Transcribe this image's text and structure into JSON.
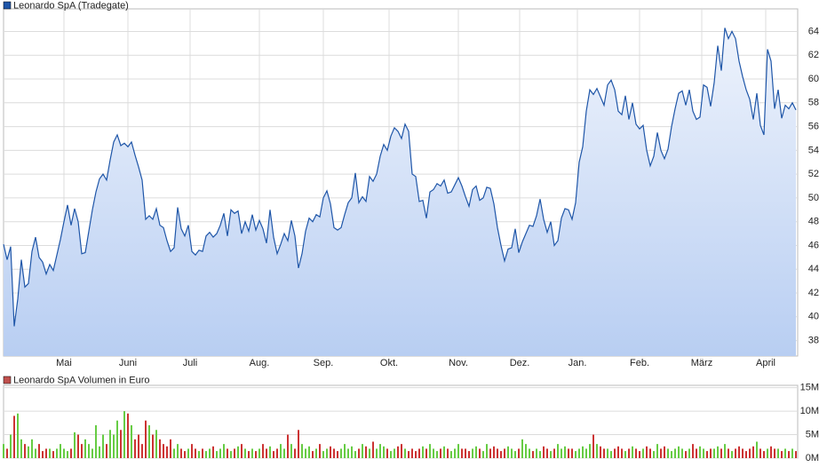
{
  "chart_data": [
    {
      "type": "line",
      "series": [
        {
          "name": "Leonardo SpA (Tradegate)",
          "color": "#1f56a8",
          "values": [
            46.1,
            44.8,
            45.9,
            39.2,
            41.5,
            44.8,
            42.5,
            42.8,
            45.5,
            46.7,
            45.0,
            44.6,
            43.6,
            44.4,
            43.9,
            45.2,
            46.5,
            48.0,
            49.4,
            47.7,
            49.1,
            48.0,
            45.3,
            45.4,
            47.2,
            49.0,
            50.5,
            51.6,
            52.0,
            51.5,
            53.2,
            54.7,
            55.3,
            54.4,
            54.6,
            54.3,
            54.7,
            53.6,
            52.6,
            51.5,
            48.2,
            48.5,
            48.2,
            49.1,
            47.7,
            47.5,
            46.4,
            45.5,
            45.8,
            49.2,
            47.4,
            46.8,
            47.7,
            45.5,
            45.2,
            45.6,
            45.5,
            46.8,
            47.1,
            46.7,
            47.0,
            47.7,
            48.7,
            46.8,
            49.0,
            48.7,
            48.9,
            47.0,
            48.0,
            47.2,
            48.6,
            47.3,
            48.1,
            47.4,
            46.2,
            49.0,
            46.7,
            45.3,
            46.1,
            47.0,
            46.4,
            48.1,
            46.8,
            44.1,
            45.3,
            47.2,
            48.3,
            48.0,
            48.6,
            48.4,
            50.0,
            50.6,
            49.5,
            47.5,
            47.3,
            47.5,
            48.6,
            49.6,
            50.0,
            52.1,
            49.6,
            50.1,
            49.7,
            51.8,
            51.4,
            52.0,
            53.5,
            54.5,
            54.0,
            55.2,
            55.9,
            55.6,
            55.0,
            56.2,
            55.6,
            52.0,
            51.8,
            49.7,
            49.8,
            48.3,
            50.5,
            50.7,
            51.2,
            51.0,
            51.5,
            50.4,
            50.5,
            51.1,
            51.7,
            51.0,
            50.1,
            49.3,
            50.7,
            51.0,
            49.8,
            50.0,
            50.9,
            50.8,
            49.5,
            47.5,
            46.0,
            44.7,
            45.7,
            45.8,
            47.4,
            45.4,
            46.3,
            47.0,
            47.7,
            47.6,
            48.5,
            49.9,
            48.2,
            47.1,
            48.0,
            46.0,
            46.4,
            48.3,
            49.1,
            49.0,
            48.2,
            49.6,
            53.0,
            54.3,
            57.3,
            59.1,
            58.7,
            59.2,
            58.5,
            57.8,
            59.5,
            59.9,
            59.1,
            57.3,
            57.0,
            58.6,
            56.6,
            58.0,
            56.2,
            55.8,
            56.1,
            54.0,
            52.7,
            53.5,
            55.5,
            54.0,
            53.3,
            54.1,
            56.0,
            57.5,
            58.8,
            59.0,
            57.8,
            59.1,
            57.3,
            56.6,
            56.8,
            59.5,
            59.3,
            57.7,
            59.7,
            62.8,
            60.7,
            64.3,
            63.4,
            64.0,
            63.4,
            61.5,
            60.2,
            59.1,
            58.3,
            56.6,
            58.8,
            56.1,
            55.3,
            62.5,
            61.5,
            57.5,
            59.1,
            56.7,
            57.8,
            57.5,
            58.0,
            57.4
          ]
        }
      ],
      "xlim": [
        0,
        223.5
      ],
      "xticks": [
        {
          "value": 17,
          "label": "Mai"
        },
        {
          "value": 35,
          "label": "Juni"
        },
        {
          "value": 52.5,
          "label": "Juli"
        },
        {
          "value": 72,
          "label": "Aug."
        },
        {
          "value": 90,
          "label": "Sep."
        },
        {
          "value": 108.5,
          "label": "Okt."
        },
        {
          "value": 128,
          "label": "Nov."
        },
        {
          "value": 145.25,
          "label": "Dez."
        },
        {
          "value": 161.5,
          "label": "Jan."
        },
        {
          "value": 179,
          "label": "Feb."
        },
        {
          "value": 196.5,
          "label": "März"
        },
        {
          "value": 214.5,
          "label": "April"
        }
      ],
      "ylim": [
        36.7,
        65.9
      ],
      "yticks": [
        38,
        40,
        42,
        44,
        46,
        48,
        50,
        52,
        54,
        56,
        58,
        60,
        62,
        64
      ],
      "grid": true
    },
    {
      "type": "bar",
      "series": [
        {
          "name": "Leonardo SpA Volumen in Euro",
          "color": "#c0504d",
          "up_color": "#66cc44",
          "down_color": "#cc3333",
          "values": [
            3,
            2,
            5,
            9,
            9.5,
            4,
            3,
            2.5,
            4,
            2,
            3,
            1.5,
            2,
            2,
            1.5,
            2,
            3,
            2,
            1.5,
            2,
            5.5,
            5,
            3,
            4,
            3,
            2,
            7,
            2.5,
            5,
            3,
            6,
            5,
            8,
            6,
            10,
            9.5,
            7,
            4,
            5,
            3,
            8,
            7,
            5,
            6,
            4,
            3,
            2.5,
            4,
            2,
            3,
            2,
            1.5,
            2,
            3,
            2,
            1.5,
            2,
            1.5,
            2,
            2.5,
            1.5,
            2,
            3,
            2,
            1.5,
            2,
            2.5,
            3,
            2,
            1.5,
            2,
            1.5,
            2,
            3,
            2,
            2.5,
            1.5,
            2,
            3,
            2,
            5,
            3,
            2,
            6,
            3,
            2,
            2.5,
            1.5,
            2,
            3,
            1.5,
            2,
            2.5,
            2,
            1.5,
            2,
            3,
            2,
            2.5,
            1.5,
            2,
            3,
            2.5,
            2,
            3.5,
            2,
            3,
            2.5,
            2,
            1.5,
            2,
            2.5,
            3,
            2,
            1.5,
            2,
            1.5,
            2,
            2.5,
            2,
            3,
            2,
            1.5,
            2,
            2.5,
            2,
            1.5,
            2,
            3,
            2,
            2,
            1.5,
            2,
            2.5,
            2,
            1.5,
            3,
            2,
            2.5,
            2,
            1.5,
            2,
            2.5,
            2,
            1.5,
            2,
            4,
            3,
            2,
            1.5,
            2,
            1.5,
            2.5,
            2,
            1.5,
            2,
            3,
            2,
            2.5,
            2,
            2,
            1.5,
            2,
            2.5,
            2,
            3,
            5,
            3,
            2.5,
            2,
            2,
            1.5,
            2,
            2.5,
            2,
            1.5,
            2,
            2.5,
            2,
            1.5,
            2,
            2.5,
            2,
            1.5,
            3,
            2,
            2.5,
            2,
            1.5,
            2,
            2.5,
            2,
            1.5,
            2,
            3,
            2,
            2.5,
            2,
            1.5,
            2,
            2,
            2.5,
            2,
            3,
            2,
            1.5,
            2,
            2.5,
            2,
            1.5,
            2,
            2.5,
            3.5,
            2,
            1.5,
            2,
            2.5,
            2,
            2,
            1.5,
            2,
            1.5,
            2,
            1.5
          ]
        }
      ],
      "xlim": [
        0,
        223.5
      ],
      "ylim": [
        0,
        15.5
      ],
      "yticks": [
        {
          "value": 0,
          "label": "0M"
        },
        {
          "value": 5,
          "label": "5M"
        },
        {
          "value": 10,
          "label": "10M"
        },
        {
          "value": 15,
          "label": "15M"
        }
      ],
      "grid": true
    }
  ]
}
